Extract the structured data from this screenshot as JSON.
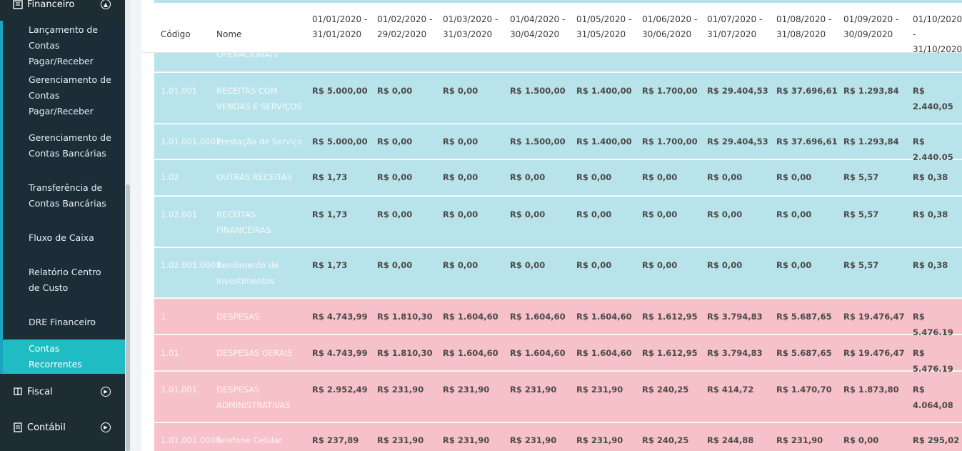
{
  "sidebar": {
    "financeiro": {
      "label": "Financeiro"
    },
    "items": [
      {
        "label": "Lançamento de Contas Pagar/Receber"
      },
      {
        "label": "Gerenciamento de Contas Pagar/Receber"
      },
      {
        "label": "Gerenciamento de Contas Bancárias"
      },
      {
        "label": "Transferência de Contas Bancárias"
      },
      {
        "label": "Fluxo de Caixa"
      },
      {
        "label": "Relatório Centro de Custo"
      },
      {
        "label": "DRE Financeiro"
      },
      {
        "label": "Contas Recorrentes",
        "active": true
      }
    ],
    "fiscal": {
      "label": "Fiscal"
    },
    "contabil": {
      "label": "Contábil"
    }
  },
  "table": {
    "headers": {
      "codigo": "Código",
      "nome": "Nome",
      "periods": [
        [
          "01/01/2020 -",
          "31/01/2020"
        ],
        [
          "01/02/2020 -",
          "29/02/2020"
        ],
        [
          "01/03/2020 -",
          "31/03/2020"
        ],
        [
          "01/04/2020 -",
          "30/04/2020"
        ],
        [
          "01/05/2020 -",
          "31/05/2020"
        ],
        [
          "01/06/2020 -",
          "30/06/2020"
        ],
        [
          "01/07/2020 -",
          "31/07/2020"
        ],
        [
          "01/08/2020 -",
          "31/08/2020"
        ],
        [
          "01/09/2020 -",
          "30/09/2020"
        ],
        [
          "01/10/2020 -",
          "31/10/2020"
        ]
      ]
    },
    "partial_row_name": "OPERACIONAIS",
    "rows": [
      {
        "type": "blue",
        "code": "1.01.001",
        "name": [
          "RECEITAS COM",
          "VENDAS E SERVIÇOS"
        ],
        "values": [
          "R$ 5.000,00",
          "R$ 0,00",
          "R$ 0,00",
          "R$ 1.500,00",
          "R$ 1.400,00",
          "R$ 1.700,00",
          "R$ 29.404,53",
          "R$ 37.696,61",
          "R$ 1.293,84",
          "R$ 2.440,05"
        ]
      },
      {
        "type": "blue",
        "code": "1.01.001.0001",
        "name": [
          "Prestação de Serviço"
        ],
        "values": [
          "R$ 5.000,00",
          "R$ 0,00",
          "R$ 0,00",
          "R$ 1.500,00",
          "R$ 1.400,00",
          "R$ 1.700,00",
          "R$ 29.404,53",
          "R$ 37.696,61",
          "R$ 1.293,84",
          "R$ 2.440,05"
        ]
      },
      {
        "type": "blue",
        "code": "1.02",
        "name": [
          "OUTRAS RECEITAS"
        ],
        "values": [
          "R$ 1,73",
          "R$ 0,00",
          "R$ 0,00",
          "R$ 0,00",
          "R$ 0,00",
          "R$ 0,00",
          "R$ 0,00",
          "R$ 0,00",
          "R$ 5,57",
          "R$ 0,38"
        ]
      },
      {
        "type": "blue",
        "code": "1.02.001",
        "name": [
          "RECEITAS",
          "FINANCEIRAS"
        ],
        "values": [
          "R$ 1,73",
          "R$ 0,00",
          "R$ 0,00",
          "R$ 0,00",
          "R$ 0,00",
          "R$ 0,00",
          "R$ 0,00",
          "R$ 0,00",
          "R$ 5,57",
          "R$ 0,38"
        ]
      },
      {
        "type": "blue",
        "code": "1.02.001.0003",
        "name": [
          "Rendimento de",
          "Investimentos"
        ],
        "values": [
          "R$ 1,73",
          "R$ 0,00",
          "R$ 0,00",
          "R$ 0,00",
          "R$ 0,00",
          "R$ 0,00",
          "R$ 0,00",
          "R$ 0,00",
          "R$ 5,57",
          "R$ 0,38"
        ]
      },
      {
        "type": "pink",
        "code": "1",
        "name": [
          "DESPESAS"
        ],
        "values": [
          "R$ 4.743,99",
          "R$ 1.810,30",
          "R$ 1.604,60",
          "R$ 1.604,60",
          "R$ 1.604,60",
          "R$ 1.612,95",
          "R$ 3.794,83",
          "R$ 5.687,65",
          "R$ 19.476,47",
          "R$ 5.476,19"
        ]
      },
      {
        "type": "pink",
        "code": "1.01",
        "name": [
          "DESPESAS GERAIS"
        ],
        "values": [
          "R$ 4.743,99",
          "R$ 1.810,30",
          "R$ 1.604,60",
          "R$ 1.604,60",
          "R$ 1.604,60",
          "R$ 1.612,95",
          "R$ 3.794,83",
          "R$ 5.687,65",
          "R$ 19.476,47",
          "R$ 5.476,19"
        ]
      },
      {
        "type": "pink",
        "code": "1.01.001",
        "name": [
          "DESPESAS",
          "ADMINISTRATIVAS"
        ],
        "values": [
          "R$ 2.952,49",
          "R$ 231,90",
          "R$ 231,90",
          "R$ 231,90",
          "R$ 231,90",
          "R$ 240,25",
          "R$ 414,72",
          "R$ 1.470,70",
          "R$ 1.873,80",
          "R$ 4.064,08"
        ]
      },
      {
        "type": "pink",
        "code": "1.01.001.0008",
        "name": [
          "Telefone Celular"
        ],
        "values": [
          "R$ 237,89",
          "R$ 231,90",
          "R$ 231,90",
          "R$ 231,90",
          "R$ 231,90",
          "R$ 240,25",
          "R$ 244,88",
          "R$ 231,90",
          "R$ 0,00",
          "R$ 295,02"
        ]
      }
    ]
  },
  "colors": {
    "sidebar_bg": "#1e2c34",
    "active_item": "#1fbdc3",
    "income_row": "#b9e3ea",
    "expense_row": "#f6c1c9"
  }
}
